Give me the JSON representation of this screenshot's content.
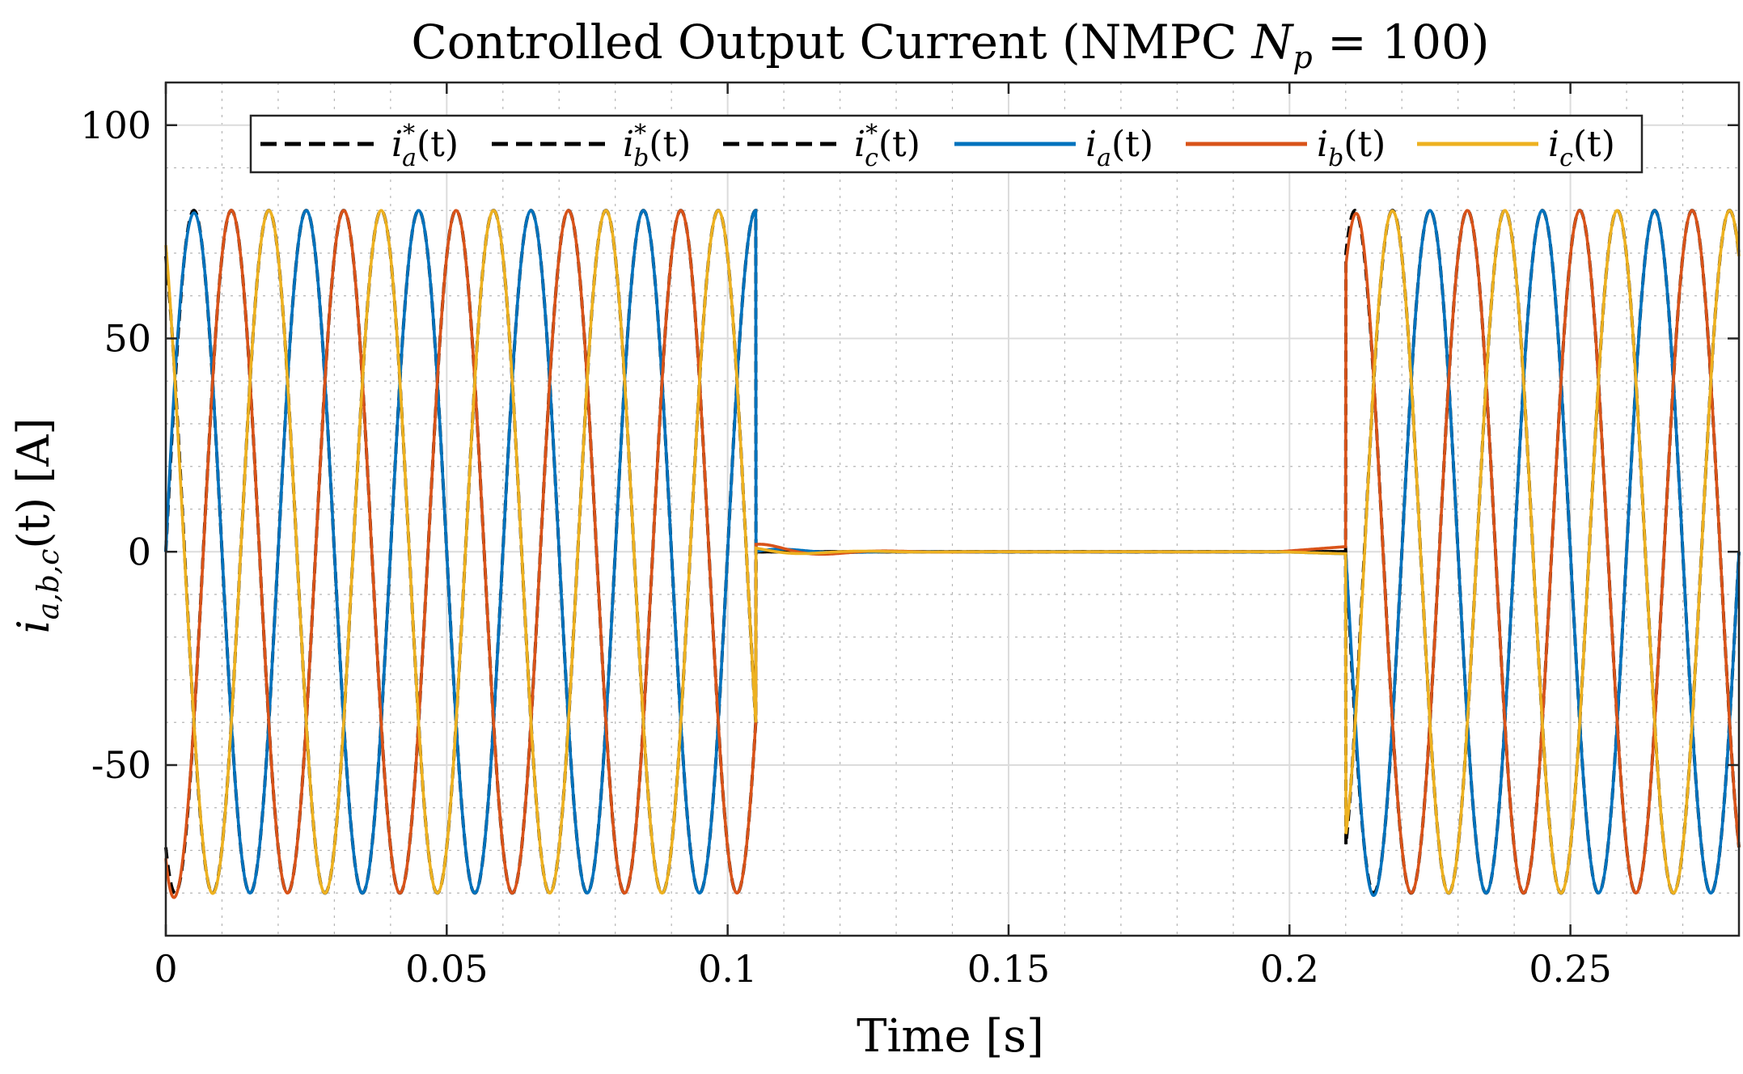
{
  "chart_data": {
    "type": "line",
    "title": "Controlled Output Current (NMPC N_p = 100)",
    "title_parts": {
      "prefix": "Controlled Output Current (NMPC ",
      "symbol": "N",
      "subscript": "p",
      "suffix": " = 100)"
    },
    "xlabel": "Time [s]",
    "ylabel": "i_{a,b,c}(t) [A]",
    "ylabel_parts": {
      "symbol": "i",
      "subscript": "a,b,c",
      "suffix": "(t) [A]"
    },
    "xlim": [
      0,
      0.28
    ],
    "ylim": [
      -90,
      110
    ],
    "xticks": [
      0,
      0.05,
      0.1,
      0.15,
      0.2,
      0.25
    ],
    "xtick_labels": [
      "0",
      "0.05",
      "0.1",
      "0.15",
      "0.2",
      "0.25"
    ],
    "yticks": [
      -50,
      0,
      50,
      100
    ],
    "ytick_labels": [
      "-50",
      "0",
      "50",
      "100"
    ],
    "grid": true,
    "minor_grid": true,
    "legend_position": "top",
    "waveform": {
      "amplitude": 80,
      "frequency_hz": 50,
      "phase_shifts_deg": {
        "a": 0,
        "b": -120,
        "c": 120
      },
      "on_intervals": [
        [
          0,
          0.105
        ],
        [
          0.21,
          0.28
        ]
      ],
      "off_interval": [
        0.105,
        0.21
      ]
    },
    "series": [
      {
        "name": "i*_a(t)",
        "label_symbol": "i",
        "label_sup": "*",
        "label_sub": "a",
        "label_suffix": "(t)",
        "phase": "a",
        "kind": "reference",
        "color": "#000000",
        "dashed": true
      },
      {
        "name": "i*_b(t)",
        "label_symbol": "i",
        "label_sup": "*",
        "label_sub": "b",
        "label_suffix": "(t)",
        "phase": "b",
        "kind": "reference",
        "color": "#000000",
        "dashed": true
      },
      {
        "name": "i*_c(t)",
        "label_symbol": "i",
        "label_sup": "*",
        "label_sub": "c",
        "label_suffix": "(t)",
        "phase": "c",
        "kind": "reference",
        "color": "#000000",
        "dashed": true
      },
      {
        "name": "i_a(t)",
        "label_symbol": "i",
        "label_sup": "",
        "label_sub": "a",
        "label_suffix": "(t)",
        "phase": "a",
        "kind": "measured",
        "color": "#0072BD",
        "dashed": false
      },
      {
        "name": "i_b(t)",
        "label_symbol": "i",
        "label_sup": "",
        "label_sub": "b",
        "label_suffix": "(t)",
        "phase": "b",
        "kind": "measured",
        "color": "#D95319",
        "dashed": false
      },
      {
        "name": "i_c(t)",
        "label_symbol": "i",
        "label_sup": "",
        "label_sub": "c",
        "label_suffix": "(t)",
        "phase": "c",
        "kind": "measured",
        "color": "#EDB120",
        "dashed": false
      }
    ]
  }
}
